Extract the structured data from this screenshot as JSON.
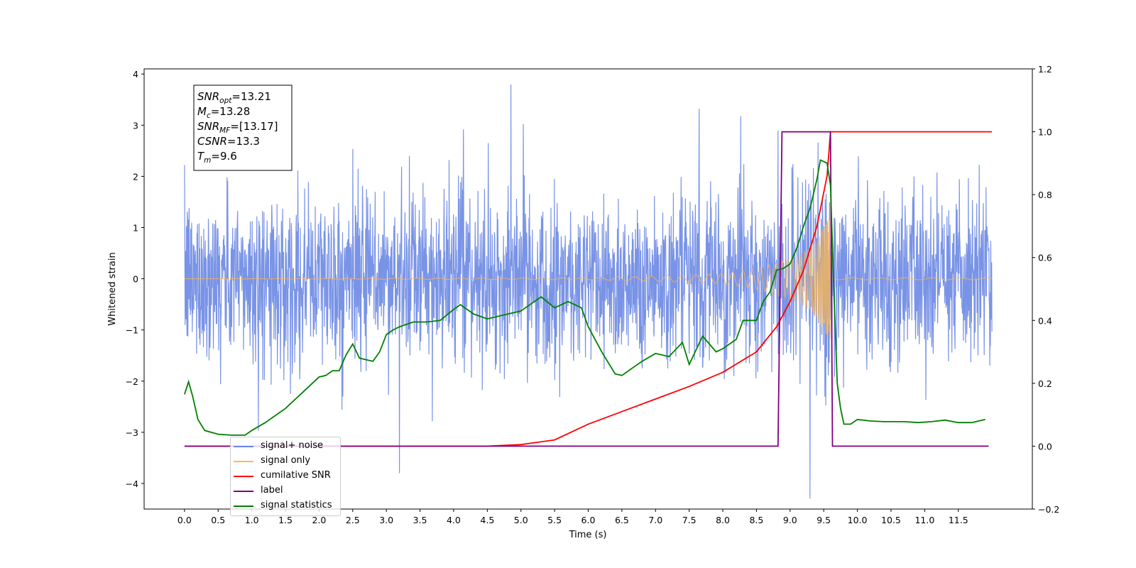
{
  "chart_data": {
    "type": "line",
    "xlabel": "Time (s)",
    "ylabel": "Whitened strain",
    "xlim": [
      -0.6,
      12.6
    ],
    "ylim": [
      -4.5,
      4.1
    ],
    "ylim_right": [
      -0.2,
      1.2
    ],
    "x_ticks": [
      "0.0",
      "0.5",
      "1.0",
      "1.5",
      "2.0",
      "2.5",
      "3.0",
      "3.5",
      "4.0",
      "4.5",
      "5.0",
      "5.5",
      "6.0",
      "6.5",
      "7.0",
      "7.5",
      "8.0",
      "8.5",
      "9.0",
      "9.5",
      "10.0",
      "10.5",
      "11.0",
      "11.5"
    ],
    "y_ticks_left": [
      "4",
      "3",
      "2",
      "1",
      "0",
      "−1",
      "−2",
      "−3",
      "−4"
    ],
    "y_ticks_right": [
      "1.2",
      "1.0",
      "0.8",
      "0.6",
      "0.4",
      "0.2",
      "0.0",
      "−0.2"
    ],
    "grid": false,
    "legend_position": "lower-left",
    "stats_box": {
      "lines": [
        {
          "sym": "SNR",
          "sub": "opt",
          "val": "=13.21"
        },
        {
          "sym": "M",
          "sub": "c",
          "val": "=13.28"
        },
        {
          "sym": "SNR",
          "sub": "MF",
          "val": "=[13.17]"
        },
        {
          "sym": "CSNR",
          "sub": "",
          "val": "=13.3"
        },
        {
          "sym": "T",
          "sub": "m",
          "val": "=9.6"
        }
      ]
    },
    "series": [
      {
        "name": "signal+ noise",
        "color": "#6a87e3",
        "axis": "left",
        "description_values": {
          "noise_std": 0.8,
          "start": 0.0,
          "end": 12.0,
          "merger_time": 9.6
        }
      },
      {
        "name": "signal only",
        "color": "#ffb74d",
        "axis": "left",
        "envelope": {
          "t": [
            0.0,
            6.0,
            7.0,
            8.0,
            8.5,
            9.0,
            9.3,
            9.5,
            9.6,
            9.62,
            12.0
          ],
          "amp": [
            0.0,
            0.02,
            0.05,
            0.1,
            0.2,
            0.4,
            0.6,
            1.0,
            1.3,
            0.02,
            0.02
          ]
        }
      },
      {
        "name": "cumilative SNR",
        "color": "#ff0000",
        "axis": "right",
        "x": [
          0.0,
          4.5,
          5.0,
          5.5,
          6.0,
          6.5,
          7.0,
          7.5,
          8.0,
          8.5,
          8.8,
          9.0,
          9.2,
          9.4,
          9.55,
          9.6,
          9.62,
          12.0
        ],
        "y": [
          0.0,
          0.0,
          0.005,
          0.02,
          0.07,
          0.11,
          0.15,
          0.19,
          0.235,
          0.3,
          0.38,
          0.46,
          0.56,
          0.7,
          0.86,
          1.0,
          1.0,
          1.0
        ]
      },
      {
        "name": "label",
        "color": "#800080",
        "axis": "right",
        "x": [
          0.0,
          8.82,
          8.88,
          9.6,
          9.63,
          11.95
        ],
        "y": [
          0.0,
          0.0,
          1.0,
          1.0,
          0.0,
          0.0
        ]
      },
      {
        "name": "signal statistics",
        "color": "#008000",
        "axis": "right",
        "x": [
          0.0,
          0.06,
          0.12,
          0.2,
          0.3,
          0.5,
          0.7,
          0.9,
          1.0,
          1.2,
          1.5,
          1.8,
          2.0,
          2.1,
          2.2,
          2.3,
          2.4,
          2.5,
          2.6,
          2.8,
          2.9,
          3.0,
          3.1,
          3.2,
          3.4,
          3.6,
          3.8,
          4.0,
          4.1,
          4.3,
          4.5,
          4.8,
          5.0,
          5.2,
          5.3,
          5.5,
          5.7,
          5.8,
          5.9,
          6.0,
          6.2,
          6.4,
          6.5,
          6.6,
          6.8,
          7.0,
          7.2,
          7.4,
          7.5,
          7.7,
          7.9,
          8.0,
          8.2,
          8.3,
          8.5,
          8.6,
          8.7,
          8.8,
          8.9,
          9.0,
          9.1,
          9.2,
          9.3,
          9.4,
          9.45,
          9.5,
          9.55,
          9.6,
          9.65,
          9.7,
          9.75,
          9.8,
          9.9,
          10.0,
          10.2,
          10.4,
          10.5,
          10.7,
          10.9,
          11.1,
          11.3,
          11.5,
          11.7,
          11.8,
          11.9
        ],
        "y": [
          0.165,
          0.205,
          0.16,
          0.085,
          0.05,
          0.038,
          0.035,
          0.035,
          0.05,
          0.075,
          0.12,
          0.18,
          0.22,
          0.225,
          0.24,
          0.24,
          0.29,
          0.325,
          0.28,
          0.27,
          0.3,
          0.355,
          0.37,
          0.38,
          0.395,
          0.395,
          0.4,
          0.435,
          0.45,
          0.42,
          0.405,
          0.42,
          0.43,
          0.46,
          0.475,
          0.44,
          0.46,
          0.45,
          0.44,
          0.38,
          0.3,
          0.23,
          0.225,
          0.24,
          0.27,
          0.295,
          0.285,
          0.33,
          0.26,
          0.35,
          0.3,
          0.31,
          0.34,
          0.4,
          0.4,
          0.46,
          0.49,
          0.56,
          0.565,
          0.58,
          0.63,
          0.7,
          0.76,
          0.85,
          0.91,
          0.905,
          0.9,
          0.83,
          0.5,
          0.2,
          0.12,
          0.07,
          0.07,
          0.085,
          0.08,
          0.078,
          0.078,
          0.078,
          0.075,
          0.078,
          0.083,
          0.075,
          0.075,
          0.08,
          0.085
        ]
      }
    ]
  },
  "legend": {
    "items": [
      {
        "label": "signal+ noise",
        "color": "#6a87e3"
      },
      {
        "label": "signal only",
        "color": "#ffb74d"
      },
      {
        "label": "cumilative SNR",
        "color": "#ff0000"
      },
      {
        "label": "label",
        "color": "#800080"
      },
      {
        "label": "signal statistics",
        "color": "#008000"
      }
    ]
  }
}
